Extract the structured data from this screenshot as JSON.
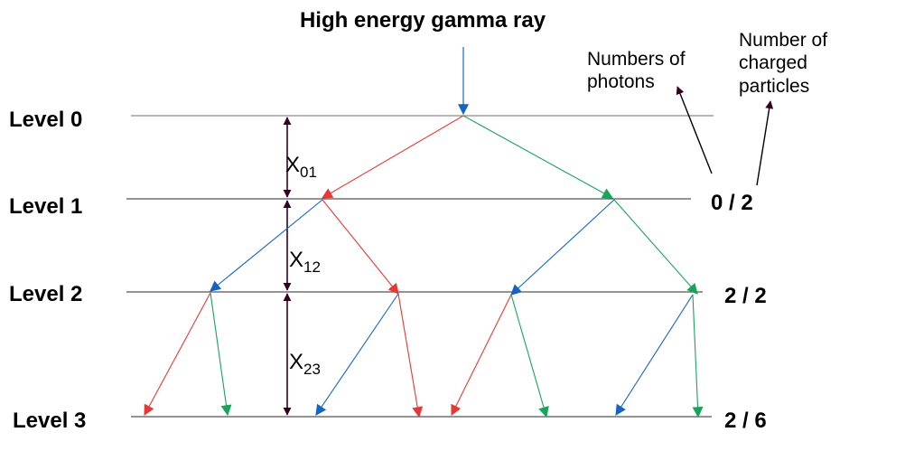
{
  "title": "High energy gamma ray",
  "levels": [
    {
      "label": "Level 0",
      "count": ""
    },
    {
      "label": "Level 1",
      "count": "0 / 2"
    },
    {
      "label": "Level 2",
      "count": "2 / 2"
    },
    {
      "label": "Level 3",
      "count": "2 / 6"
    }
  ],
  "gaps": [
    {
      "symbol": "X",
      "sub": "01"
    },
    {
      "symbol": "X",
      "sub": "12"
    },
    {
      "symbol": "X",
      "sub": "23"
    }
  ],
  "notes": {
    "photons": [
      "Numbers of",
      "photons"
    ],
    "charged": [
      "Number of",
      "charged",
      "particles"
    ]
  },
  "colors": {
    "photon": "#1565c0",
    "electron": "#e53935",
    "positron": "#1aa35a",
    "level_line": "#8c8c8c",
    "gap_arrow": "#330022"
  }
}
